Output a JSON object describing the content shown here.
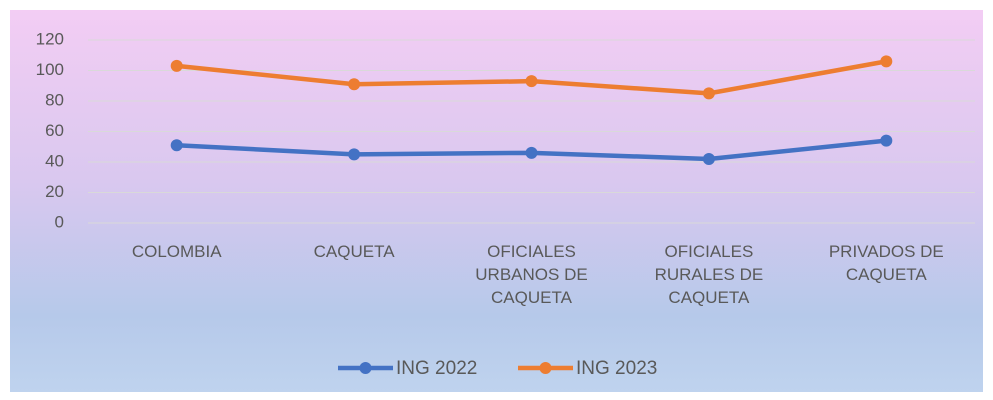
{
  "chart_data": {
    "type": "line",
    "categories": [
      "COLOMBIA",
      "CAQUETA",
      "OFICIALES URBANOS DE CAQUETA",
      "OFICIALES RURALES DE CAQUETA",
      "PRIVADOS DE CAQUETA"
    ],
    "series": [
      {
        "name": "ING 2022",
        "color": "#4472c4",
        "values": [
          51,
          45,
          46,
          42,
          54
        ]
      },
      {
        "name": "ING 2023",
        "color": "#ed7d31",
        "values": [
          103,
          91,
          93,
          85,
          106
        ]
      }
    ],
    "ylim": [
      0,
      120
    ],
    "yticks": [
      0,
      20,
      40,
      60,
      80,
      100,
      120
    ],
    "grid": true,
    "legend": "bottom"
  }
}
